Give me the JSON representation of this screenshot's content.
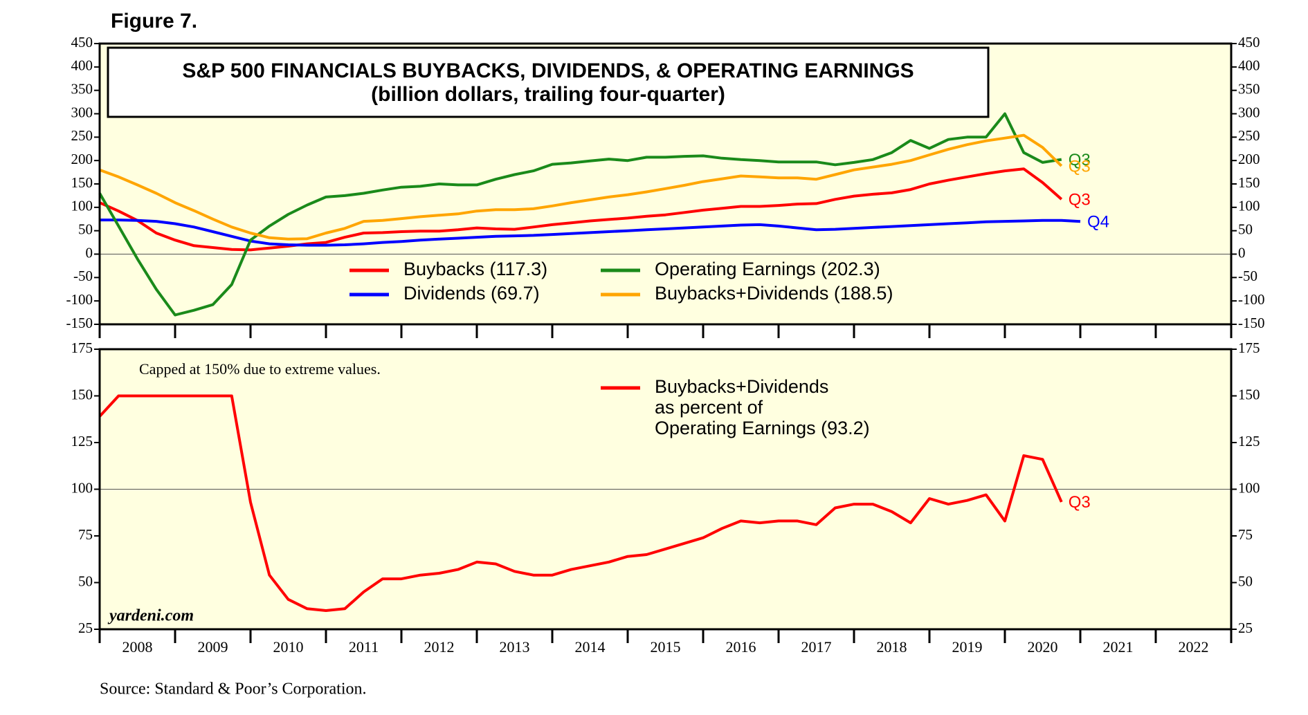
{
  "figure_label": "Figure 7.",
  "source": "Source: Standard & Poor’s Corporation.",
  "watermark": "yardeni.com",
  "chart_data": [
    {
      "type": "line",
      "title": "S&P 500 FINANCIALS BUYBACKS, DIVIDENDS, & OPERATING EARNINGS",
      "subtitle": "(billion dollars, trailing four-quarter)",
      "x": [
        2008,
        2008.25,
        2008.5,
        2008.75,
        2009,
        2009.25,
        2009.5,
        2009.75,
        2010,
        2010.25,
        2010.5,
        2010.75,
        2011,
        2011.25,
        2011.5,
        2011.75,
        2012,
        2012.25,
        2012.5,
        2012.75,
        2013,
        2013.25,
        2013.5,
        2013.75,
        2014,
        2014.25,
        2014.5,
        2014.75,
        2015,
        2015.25,
        2015.5,
        2015.75,
        2016,
        2016.25,
        2016.5,
        2016.75,
        2017,
        2017.25,
        2017.5,
        2017.75,
        2018,
        2018.25,
        2018.5,
        2018.75,
        2019,
        2019.25,
        2019.5,
        2019.75,
        2020,
        2020.25,
        2020.5,
        2020.75,
        2021
      ],
      "xlim": [
        2008,
        2023
      ],
      "xticks": [
        2008,
        2009,
        2010,
        2011,
        2012,
        2013,
        2014,
        2015,
        2016,
        2017,
        2018,
        2019,
        2020,
        2021,
        2022,
        2023
      ],
      "ylim": [
        -150,
        450
      ],
      "yticks": [
        -150,
        -100,
        -50,
        0,
        50,
        100,
        150,
        200,
        250,
        300,
        350,
        400,
        450
      ],
      "reference_line": 0,
      "background": "#ffffe0",
      "series": [
        {
          "name": "Buybacks (117.3)",
          "color": "#ff0000",
          "end_label": "Q3",
          "values": [
            110,
            92,
            72,
            45,
            30,
            18,
            14,
            10,
            9,
            13,
            17,
            22,
            25,
            36,
            45,
            46,
            48,
            49,
            49,
            52,
            56,
            54,
            53,
            58,
            63,
            67,
            71,
            74,
            77,
            81,
            84,
            89,
            94,
            98,
            102,
            102,
            104,
            107,
            108,
            117,
            124,
            128,
            131,
            138,
            150,
            158,
            165,
            172,
            178,
            182,
            153,
            117.3,
            null
          ]
        },
        {
          "name": "Dividends (69.7)",
          "color": "#0000ff",
          "end_label": "Q4",
          "values": [
            73,
            73,
            72,
            70,
            65,
            58,
            48,
            38,
            28,
            22,
            20,
            19,
            19,
            20,
            22,
            25,
            27,
            30,
            32,
            34,
            36,
            38,
            39,
            40,
            42,
            44,
            46,
            48,
            50,
            52,
            54,
            56,
            58,
            60,
            62,
            63,
            60,
            56,
            52,
            53,
            55,
            57,
            59,
            61,
            63,
            65,
            67,
            69,
            70,
            71,
            72,
            72,
            69.7
          ]
        },
        {
          "name": "Operating Earnings (202.3)",
          "color": "#1a8a1a",
          "end_label": "Q3",
          "values": [
            130,
            60,
            -10,
            -75,
            -130,
            -120,
            -108,
            -65,
            30,
            60,
            85,
            105,
            122,
            125,
            130,
            137,
            143,
            145,
            150,
            148,
            148,
            160,
            170,
            178,
            192,
            195,
            199,
            203,
            200,
            207,
            207,
            209,
            210,
            205,
            202,
            200,
            197,
            197,
            197,
            191,
            196,
            202,
            217,
            243,
            226,
            245,
            250,
            250,
            300,
            217,
            196,
            202.3,
            null
          ]
        },
        {
          "name": "Buybacks+Dividends (188.5)",
          "color": "#ffa500",
          "end_label": "Q3",
          "values": [
            180,
            165,
            148,
            130,
            110,
            93,
            75,
            58,
            45,
            35,
            32,
            33,
            45,
            55,
            70,
            72,
            76,
            80,
            83,
            86,
            92,
            95,
            95,
            97,
            103,
            110,
            116,
            122,
            127,
            133,
            140,
            147,
            155,
            161,
            167,
            165,
            163,
            163,
            160,
            170,
            180,
            186,
            192,
            200,
            212,
            224,
            234,
            242,
            248,
            254,
            228,
            188.5,
            null
          ]
        }
      ]
    },
    {
      "type": "line",
      "annotation": "Capped at 150% due to extreme values.",
      "x": [
        2008,
        2008.25,
        2008.5,
        2008.75,
        2009,
        2009.25,
        2009.5,
        2009.75,
        2010,
        2010.25,
        2010.5,
        2010.75,
        2011,
        2011.25,
        2011.5,
        2011.75,
        2012,
        2012.25,
        2012.5,
        2012.75,
        2013,
        2013.25,
        2013.5,
        2013.75,
        2014,
        2014.25,
        2014.5,
        2014.75,
        2015,
        2015.25,
        2015.5,
        2015.75,
        2016,
        2016.25,
        2016.5,
        2016.75,
        2017,
        2017.25,
        2017.5,
        2017.75,
        2018,
        2018.25,
        2018.5,
        2018.75,
        2019,
        2019.25,
        2019.5,
        2019.75,
        2020,
        2020.25,
        2020.5,
        2020.75
      ],
      "xlim": [
        2008,
        2023
      ],
      "xticks": [
        2008,
        2009,
        2010,
        2011,
        2012,
        2013,
        2014,
        2015,
        2016,
        2017,
        2018,
        2019,
        2020,
        2021,
        2022,
        2023
      ],
      "year_labels": [
        2008,
        2009,
        2010,
        2011,
        2012,
        2013,
        2014,
        2015,
        2016,
        2017,
        2018,
        2019,
        2020,
        2021,
        2022
      ],
      "ylim": [
        25,
        175
      ],
      "yticks": [
        25,
        50,
        75,
        100,
        125,
        150,
        175
      ],
      "reference_line": 100,
      "background": "#ffffe0",
      "series": [
        {
          "name": [
            "Buybacks+Dividends",
            "as percent of",
            "Operating Earnings (93.2)"
          ],
          "color": "#ff0000",
          "end_label": "Q3",
          "values": [
            139,
            150,
            150,
            150,
            150,
            150,
            150,
            150,
            93,
            54,
            41,
            36,
            35,
            36,
            45,
            52,
            52,
            54,
            55,
            57,
            61,
            60,
            56,
            54,
            54,
            57,
            59,
            61,
            64,
            65,
            68,
            71,
            74,
            79,
            83,
            82,
            83,
            83,
            81,
            90,
            92,
            92,
            88,
            82,
            95,
            92,
            94,
            97,
            83,
            118,
            116,
            93.2
          ]
        }
      ]
    }
  ]
}
